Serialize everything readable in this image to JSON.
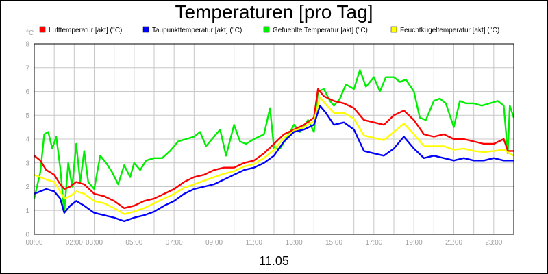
{
  "chart_data": {
    "type": "line",
    "title": "Temperaturen [pro Tag]",
    "ylabel": "°C",
    "xlabel": "11.05",
    "ylim": [
      0,
      8
    ],
    "xlim_hours": [
      0,
      24
    ],
    "y_ticks": [
      "0",
      "1",
      "2",
      "3",
      "4",
      "5",
      "6",
      "7",
      "8"
    ],
    "x_ticks": [
      {
        "h": 0,
        "label": "00:00"
      },
      {
        "h": 2,
        "label": "02:00"
      },
      {
        "h": 3,
        "label": "03:00"
      },
      {
        "h": 5,
        "label": "05:00"
      },
      {
        "h": 7,
        "label": "07:00"
      },
      {
        "h": 9,
        "label": "09:00"
      },
      {
        "h": 11,
        "label": "11:00"
      },
      {
        "h": 13,
        "label": "13:00"
      },
      {
        "h": 15,
        "label": "15:00"
      },
      {
        "h": 17,
        "label": "17:00"
      },
      {
        "h": 19,
        "label": "19:00"
      },
      {
        "h": 21,
        "label": "21:00"
      },
      {
        "h": 23,
        "label": "23:00"
      }
    ],
    "grid": true,
    "legend_position": "top",
    "series": [
      {
        "name": "Lufttemperatur [akt] (°C)",
        "color": "#ff0000",
        "points": [
          [
            0,
            3.3
          ],
          [
            0.3,
            3.1
          ],
          [
            0.6,
            2.7
          ],
          [
            1.0,
            2.5
          ],
          [
            1.3,
            2.1
          ],
          [
            1.5,
            1.9
          ],
          [
            1.8,
            2.0
          ],
          [
            2.1,
            2.2
          ],
          [
            2.5,
            2.1
          ],
          [
            3.0,
            1.7
          ],
          [
            3.5,
            1.6
          ],
          [
            4.0,
            1.4
          ],
          [
            4.5,
            1.1
          ],
          [
            5.0,
            1.2
          ],
          [
            5.5,
            1.4
          ],
          [
            6.0,
            1.5
          ],
          [
            6.5,
            1.7
          ],
          [
            7.0,
            1.9
          ],
          [
            7.5,
            2.2
          ],
          [
            8.0,
            2.4
          ],
          [
            8.5,
            2.5
          ],
          [
            9.0,
            2.7
          ],
          [
            9.5,
            2.8
          ],
          [
            10.0,
            2.8
          ],
          [
            10.5,
            3.0
          ],
          [
            11.0,
            3.1
          ],
          [
            11.5,
            3.4
          ],
          [
            12.0,
            3.8
          ],
          [
            12.5,
            4.2
          ],
          [
            13.0,
            4.4
          ],
          [
            13.5,
            4.6
          ],
          [
            14.0,
            4.9
          ],
          [
            14.2,
            6.1
          ],
          [
            14.5,
            5.8
          ],
          [
            15.0,
            5.6
          ],
          [
            15.5,
            5.5
          ],
          [
            16.0,
            5.3
          ],
          [
            16.5,
            4.8
          ],
          [
            17.0,
            4.7
          ],
          [
            17.5,
            4.6
          ],
          [
            18.0,
            5.0
          ],
          [
            18.5,
            5.2
          ],
          [
            19.0,
            4.8
          ],
          [
            19.5,
            4.2
          ],
          [
            20.0,
            4.1
          ],
          [
            20.5,
            4.2
          ],
          [
            21.0,
            4.0
          ],
          [
            21.5,
            4.0
          ],
          [
            22.0,
            3.9
          ],
          [
            22.5,
            3.8
          ],
          [
            23.0,
            3.8
          ],
          [
            23.5,
            4.0
          ],
          [
            23.7,
            3.5
          ],
          [
            24.0,
            3.5
          ]
        ]
      },
      {
        "name": "Taupunkttemperatur [akt] (°C)",
        "color": "#0000ff",
        "points": [
          [
            0,
            1.7
          ],
          [
            0.3,
            1.8
          ],
          [
            0.6,
            1.9
          ],
          [
            1.0,
            1.8
          ],
          [
            1.3,
            1.5
          ],
          [
            1.5,
            0.9
          ],
          [
            1.8,
            1.2
          ],
          [
            2.1,
            1.4
          ],
          [
            2.5,
            1.2
          ],
          [
            3.0,
            0.9
          ],
          [
            3.5,
            0.8
          ],
          [
            4.0,
            0.7
          ],
          [
            4.5,
            0.55
          ],
          [
            5.0,
            0.7
          ],
          [
            5.5,
            0.8
          ],
          [
            6.0,
            0.95
          ],
          [
            6.5,
            1.2
          ],
          [
            7.0,
            1.4
          ],
          [
            7.5,
            1.7
          ],
          [
            8.0,
            1.9
          ],
          [
            8.5,
            2.0
          ],
          [
            9.0,
            2.1
          ],
          [
            9.5,
            2.3
          ],
          [
            10.0,
            2.5
          ],
          [
            10.5,
            2.7
          ],
          [
            11.0,
            2.8
          ],
          [
            11.5,
            3.0
          ],
          [
            12.0,
            3.3
          ],
          [
            12.5,
            3.9
          ],
          [
            13.0,
            4.3
          ],
          [
            13.5,
            4.4
          ],
          [
            14.0,
            4.6
          ],
          [
            14.3,
            5.4
          ],
          [
            14.6,
            5.1
          ],
          [
            15.0,
            4.6
          ],
          [
            15.5,
            4.7
          ],
          [
            16.0,
            4.4
          ],
          [
            16.5,
            3.5
          ],
          [
            17.0,
            3.4
          ],
          [
            17.5,
            3.3
          ],
          [
            18.0,
            3.6
          ],
          [
            18.5,
            4.1
          ],
          [
            19.0,
            3.6
          ],
          [
            19.5,
            3.2
          ],
          [
            20.0,
            3.3
          ],
          [
            20.5,
            3.2
          ],
          [
            21.0,
            3.1
          ],
          [
            21.5,
            3.2
          ],
          [
            22.0,
            3.1
          ],
          [
            22.5,
            3.1
          ],
          [
            23.0,
            3.2
          ],
          [
            23.5,
            3.1
          ],
          [
            24.0,
            3.1
          ]
        ]
      },
      {
        "name": "Gefuehlte Temperatur [akt] (°C)",
        "color": "#00ee00",
        "points": [
          [
            0,
            1.5
          ],
          [
            0.3,
            2.6
          ],
          [
            0.5,
            4.2
          ],
          [
            0.7,
            4.3
          ],
          [
            0.9,
            3.6
          ],
          [
            1.1,
            4.1
          ],
          [
            1.3,
            2.8
          ],
          [
            1.5,
            0.9
          ],
          [
            1.7,
            3.0
          ],
          [
            1.9,
            2.0
          ],
          [
            2.1,
            3.8
          ],
          [
            2.3,
            2.2
          ],
          [
            2.5,
            3.5
          ],
          [
            2.7,
            2.2
          ],
          [
            3.0,
            1.9
          ],
          [
            3.3,
            3.3
          ],
          [
            3.6,
            3.0
          ],
          [
            3.9,
            2.6
          ],
          [
            4.2,
            2.1
          ],
          [
            4.5,
            2.9
          ],
          [
            4.8,
            2.4
          ],
          [
            5.0,
            3.0
          ],
          [
            5.3,
            2.7
          ],
          [
            5.6,
            3.1
          ],
          [
            6.0,
            3.2
          ],
          [
            6.4,
            3.2
          ],
          [
            6.8,
            3.5
          ],
          [
            7.2,
            3.9
          ],
          [
            7.6,
            4.0
          ],
          [
            8.0,
            4.1
          ],
          [
            8.3,
            4.3
          ],
          [
            8.6,
            3.7
          ],
          [
            9.0,
            4.1
          ],
          [
            9.3,
            4.4
          ],
          [
            9.6,
            3.3
          ],
          [
            10.0,
            4.6
          ],
          [
            10.3,
            3.9
          ],
          [
            10.6,
            3.8
          ],
          [
            11.0,
            4.0
          ],
          [
            11.5,
            4.2
          ],
          [
            11.8,
            5.3
          ],
          [
            12.0,
            3.6
          ],
          [
            12.3,
            3.6
          ],
          [
            12.6,
            4.0
          ],
          [
            13.0,
            4.6
          ],
          [
            13.3,
            4.3
          ],
          [
            13.7,
            4.8
          ],
          [
            14.0,
            4.3
          ],
          [
            14.2,
            6.0
          ],
          [
            14.5,
            6.1
          ],
          [
            14.8,
            5.6
          ],
          [
            15.0,
            5.4
          ],
          [
            15.3,
            5.7
          ],
          [
            15.6,
            6.3
          ],
          [
            16.0,
            6.1
          ],
          [
            16.3,
            6.9
          ],
          [
            16.6,
            6.2
          ],
          [
            17.0,
            6.6
          ],
          [
            17.3,
            6.0
          ],
          [
            17.6,
            6.6
          ],
          [
            18.0,
            6.6
          ],
          [
            18.3,
            6.4
          ],
          [
            18.6,
            6.5
          ],
          [
            19.0,
            6.0
          ],
          [
            19.3,
            4.9
          ],
          [
            19.6,
            4.8
          ],
          [
            20.0,
            5.6
          ],
          [
            20.3,
            5.7
          ],
          [
            20.6,
            5.5
          ],
          [
            21.0,
            4.5
          ],
          [
            21.3,
            5.6
          ],
          [
            21.6,
            5.5
          ],
          [
            22.0,
            5.5
          ],
          [
            22.4,
            5.4
          ],
          [
            22.8,
            5.5
          ],
          [
            23.2,
            5.6
          ],
          [
            23.5,
            5.4
          ],
          [
            23.7,
            3.4
          ],
          [
            23.8,
            5.4
          ],
          [
            24.0,
            4.9
          ]
        ]
      },
      {
        "name": "Feuchtkugeltemperatur [akt] (°C)",
        "color": "#ffff00",
        "points": [
          [
            0,
            2.5
          ],
          [
            0.3,
            2.4
          ],
          [
            0.6,
            2.3
          ],
          [
            1.0,
            2.2
          ],
          [
            1.3,
            1.8
          ],
          [
            1.5,
            1.5
          ],
          [
            1.8,
            1.6
          ],
          [
            2.1,
            1.8
          ],
          [
            2.5,
            1.7
          ],
          [
            3.0,
            1.4
          ],
          [
            3.5,
            1.3
          ],
          [
            4.0,
            1.1
          ],
          [
            4.5,
            0.85
          ],
          [
            5.0,
            0.95
          ],
          [
            5.5,
            1.1
          ],
          [
            6.0,
            1.3
          ],
          [
            6.5,
            1.5
          ],
          [
            7.0,
            1.7
          ],
          [
            7.5,
            1.95
          ],
          [
            8.0,
            2.1
          ],
          [
            8.5,
            2.25
          ],
          [
            9.0,
            2.4
          ],
          [
            9.5,
            2.55
          ],
          [
            10.0,
            2.65
          ],
          [
            10.5,
            2.85
          ],
          [
            11.0,
            2.95
          ],
          [
            11.5,
            3.2
          ],
          [
            12.0,
            3.55
          ],
          [
            12.5,
            4.05
          ],
          [
            13.0,
            4.35
          ],
          [
            13.5,
            4.5
          ],
          [
            14.0,
            4.75
          ],
          [
            14.3,
            5.75
          ],
          [
            14.6,
            5.45
          ],
          [
            15.0,
            5.1
          ],
          [
            15.5,
            5.1
          ],
          [
            16.0,
            4.85
          ],
          [
            16.5,
            4.15
          ],
          [
            17.0,
            4.05
          ],
          [
            17.5,
            3.95
          ],
          [
            18.0,
            4.3
          ],
          [
            18.5,
            4.65
          ],
          [
            19.0,
            4.2
          ],
          [
            19.5,
            3.7
          ],
          [
            20.0,
            3.7
          ],
          [
            20.5,
            3.7
          ],
          [
            21.0,
            3.55
          ],
          [
            21.5,
            3.6
          ],
          [
            22.0,
            3.5
          ],
          [
            22.5,
            3.45
          ],
          [
            23.0,
            3.5
          ],
          [
            23.5,
            3.55
          ],
          [
            24.0,
            3.3
          ]
        ]
      }
    ]
  }
}
